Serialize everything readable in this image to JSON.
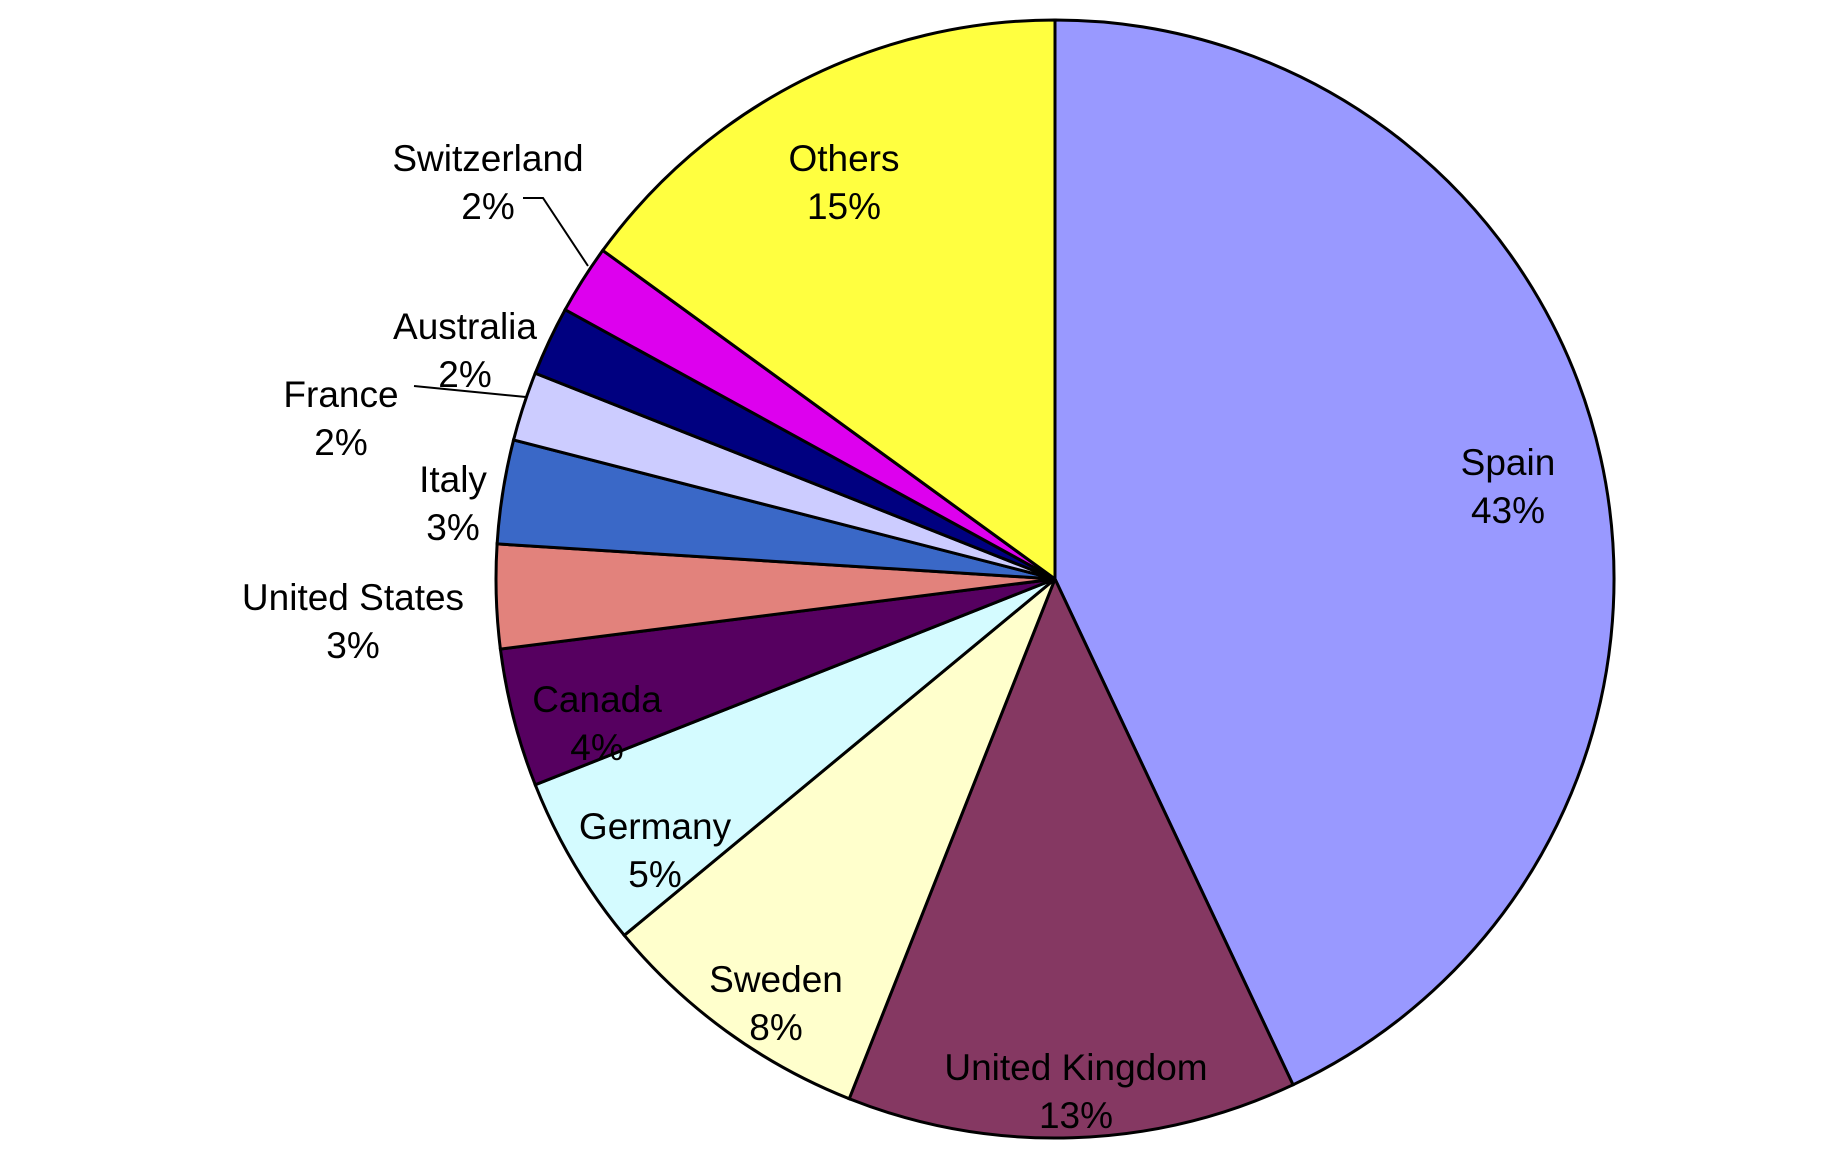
{
  "chart_data": {
    "type": "pie",
    "categories": [
      "Spain",
      "United Kingdom",
      "Sweden",
      "Germany",
      "Canada",
      "United States",
      "Italy",
      "France",
      "Australia",
      "Switzerland",
      "Others"
    ],
    "values": [
      43,
      13,
      8,
      5,
      4,
      3,
      3,
      2,
      2,
      2,
      15
    ],
    "value_labels": [
      "43%",
      "13%",
      "8%",
      "5%",
      "4%",
      "3%",
      "3%",
      "2%",
      "2%",
      "2%",
      "15%"
    ],
    "colors": [
      "#9999ff",
      "#853862",
      "#ffffcc",
      "#d4fbff",
      "#560060",
      "#e2827c",
      "#3a68c7",
      "#ccccff",
      "#000080",
      "#dd00ee",
      "#ffff40"
    ]
  }
}
